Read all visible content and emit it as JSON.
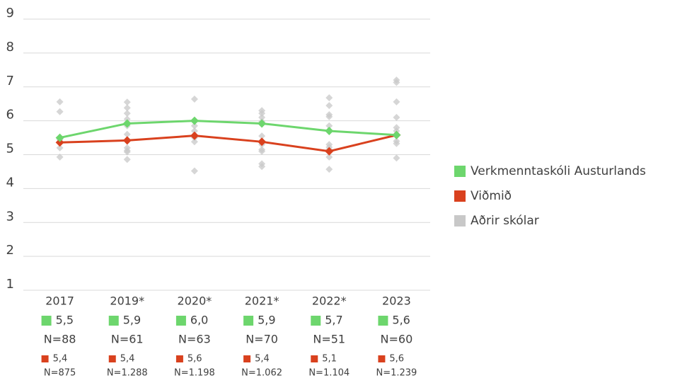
{
  "chart_data": {
    "type": "line",
    "categories": [
      "2017",
      "2019*",
      "2020*",
      "2021*",
      "2022*",
      "2023"
    ],
    "ylim": [
      1,
      9
    ],
    "yticks": [
      1,
      2,
      3,
      4,
      5,
      6,
      7,
      8,
      9
    ],
    "grid": true,
    "legend": "right",
    "series": [
      {
        "name": "Verkmenntaskóli Austurlands",
        "color": "#6dd66d",
        "values": [
          5.5,
          5.92,
          6.0,
          5.92,
          5.7,
          5.58
        ],
        "value_labels": [
          "5,5",
          "5,9",
          "6,0",
          "5,9",
          "5,7",
          "5,6"
        ],
        "n_labels": [
          "N=88",
          "N=61",
          "N=63",
          "N=70",
          "N=51",
          "N=60"
        ]
      },
      {
        "name": "Viðmið",
        "color": "#d9411e",
        "values": [
          5.36,
          5.42,
          5.56,
          5.38,
          5.1,
          5.58
        ],
        "value_labels": [
          "5,4",
          "5,4",
          "5,6",
          "5,4",
          "5,1",
          "5,6"
        ],
        "n_labels": [
          "N=875",
          "N=1.288",
          "N=1.198",
          "N=1.062",
          "N=1.104",
          "N=1.239"
        ]
      },
      {
        "name": "Aðrir skólar",
        "color": "#c8c8c8",
        "values": [
          [
            6.56,
            6.27,
            5.45,
            5.2,
            4.93
          ],
          [
            6.55,
            6.38,
            6.22,
            6.05,
            5.85,
            5.6,
            5.2,
            5.12,
            5.08,
            4.86
          ],
          [
            6.64,
            5.85,
            5.7,
            5.5,
            5.38,
            4.52
          ],
          [
            6.3,
            6.22,
            6.1,
            5.98,
            5.55,
            5.3,
            5.15,
            5.1,
            4.73,
            4.65
          ],
          [
            6.68,
            6.45,
            6.18,
            6.12,
            5.85,
            5.3,
            5.22,
            5.15,
            4.93,
            4.57
          ],
          [
            7.2,
            7.13,
            6.56,
            6.1,
            5.8,
            5.7,
            5.4,
            5.33,
            4.9
          ]
        ]
      }
    ]
  }
}
